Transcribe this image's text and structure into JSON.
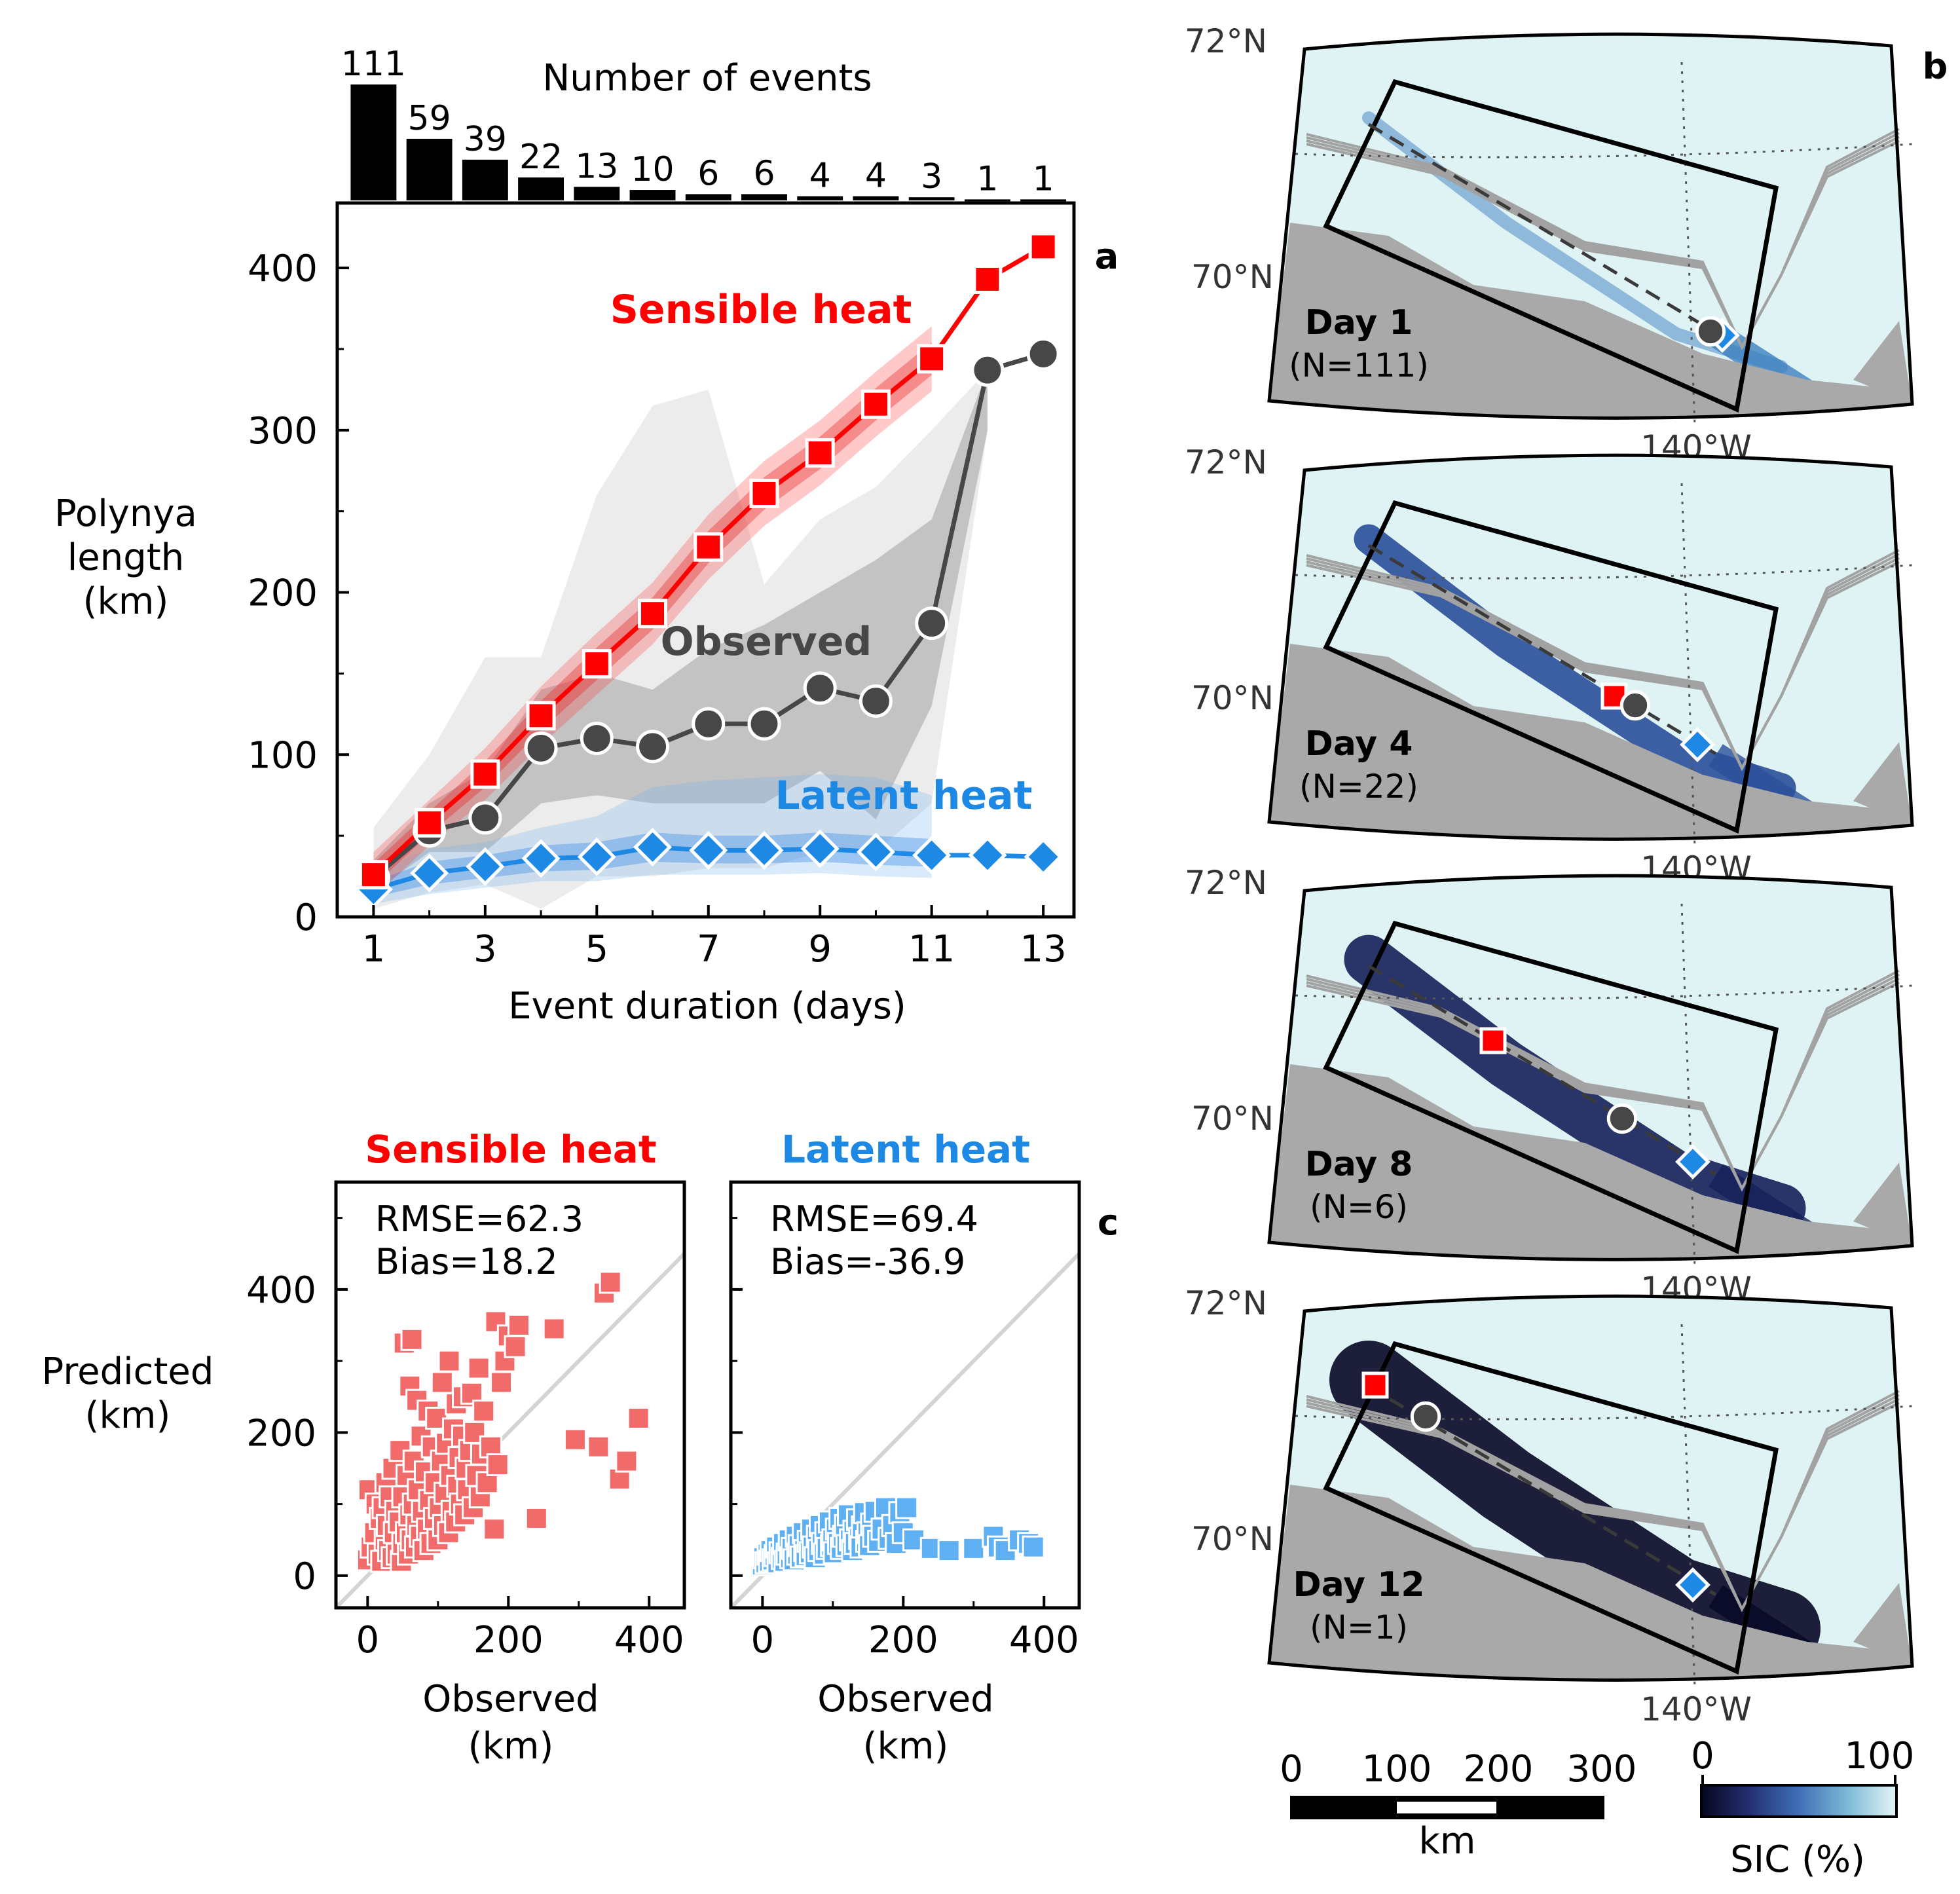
{
  "panel_labels": {
    "a": "a",
    "b": "b",
    "c": "c"
  },
  "colors": {
    "sensible": "#ff0000",
    "sensible_scatter": "#f26b6b",
    "latent": "#1e88e5",
    "latent_scatter": "#5eb0f2",
    "observed": "#474747",
    "land": "#a9a9a9",
    "ice_high": "#e0f4f5",
    "ice_low": "#0a0a2e"
  },
  "chart_data": [
    {
      "id": "histogram",
      "type": "bar",
      "title": "Number of events",
      "categories": [
        1,
        2,
        3,
        4,
        5,
        6,
        7,
        8,
        9,
        10,
        11,
        12,
        13
      ],
      "values": [
        111,
        59,
        39,
        22,
        13,
        10,
        6,
        6,
        4,
        4,
        3,
        1,
        1
      ],
      "value_labels": [
        "111",
        "59",
        "39",
        "22",
        "13",
        "10",
        "6",
        "6",
        "4",
        "4",
        "3",
        "1",
        "1"
      ]
    },
    {
      "id": "panel_a",
      "type": "line",
      "xlabel": "Event duration (days)",
      "ylabel": "Polynya length (km)",
      "ylabel_lines": [
        "Polynya",
        "length",
        "(km)"
      ],
      "xlim": [
        0.35,
        13.55
      ],
      "ylim": [
        0,
        440
      ],
      "xticks": [
        1,
        3,
        5,
        7,
        9,
        11,
        13
      ],
      "xtick_labels": [
        "1",
        "3",
        "5",
        "7",
        "9",
        "11",
        "13"
      ],
      "yticks": [
        0,
        100,
        200,
        300,
        400
      ],
      "ytick_labels": [
        "0",
        "100",
        "200",
        "300",
        "400"
      ],
      "x": [
        1,
        2,
        3,
        4,
        5,
        6,
        7,
        8,
        9,
        10,
        11,
        12,
        13
      ],
      "series": [
        {
          "name": "Sensible heat",
          "marker": "square",
          "values": [
            26,
            58,
            88,
            124,
            156,
            187,
            228,
            261,
            286,
            316,
            344,
            393,
            413
          ],
          "band_inner_low": [
            19,
            51,
            80,
            115,
            146,
            177,
            218,
            251,
            276,
            306,
            334
          ],
          "band_inner_high": [
            33,
            65,
            96,
            133,
            166,
            197,
            238,
            271,
            296,
            326,
            354
          ],
          "band_outer_low": [
            12,
            44,
            72,
            106,
            137,
            168,
            208,
            241,
            266,
            296,
            324
          ],
          "band_outer_high": [
            40,
            72,
            104,
            142,
            175,
            206,
            248,
            281,
            306,
            336,
            364
          ]
        },
        {
          "name": "Observed",
          "marker": "circle",
          "values": [
            24,
            53,
            61,
            104,
            110,
            105,
            119,
            119,
            141,
            133,
            181,
            337,
            347
          ],
          "band_inner_low": [
            15,
            40,
            40,
            70,
            75,
            70,
            70,
            70,
            90,
            60,
            130,
            300
          ],
          "band_inner_high": [
            35,
            70,
            90,
            140,
            150,
            140,
            165,
            180,
            200,
            220,
            245,
            337
          ],
          "band_outer_low": [
            5,
            15,
            20,
            5,
            25,
            25,
            30,
            30,
            40,
            40,
            70,
            300
          ],
          "band_outer_high": [
            55,
            100,
            160,
            160,
            260,
            315,
            325,
            205,
            245,
            265,
            300,
            337
          ]
        },
        {
          "name": "Latent heat",
          "marker": "diamond",
          "values": [
            17,
            27,
            31,
            36,
            37,
            43,
            41,
            41,
            42,
            40,
            38,
            38,
            37
          ],
          "band_inner_low": [
            12,
            20,
            24,
            28,
            29,
            34,
            33,
            33,
            34,
            32,
            31
          ],
          "band_inner_high": [
            22,
            34,
            38,
            44,
            46,
            52,
            50,
            50,
            52,
            50,
            48
          ],
          "band_outer_low": [
            8,
            14,
            18,
            22,
            22,
            26,
            26,
            26,
            27,
            25,
            24
          ],
          "band_outer_high": [
            28,
            42,
            46,
            55,
            62,
            80,
            84,
            86,
            88,
            86,
            75
          ]
        }
      ],
      "series_labels": [
        "Sensible heat",
        "Observed",
        "Latent heat"
      ]
    },
    {
      "id": "panel_c_sensible",
      "type": "scatter",
      "title": "Sensible heat",
      "xlabel": "Observed",
      "xlabel_unit": "(km)",
      "ylabel": "Predicted",
      "ylabel_unit": "(km)",
      "xlim": [
        -45,
        450
      ],
      "ylim": [
        -45,
        550
      ],
      "xticks": [
        0,
        200,
        400
      ],
      "xtick_labels": [
        "0",
        "200",
        "400"
      ],
      "yticks": [
        0,
        200,
        400
      ],
      "ytick_labels": [
        "0",
        "200",
        "400"
      ],
      "stats": [
        "RMSE=62.3",
        "Bias=18.2"
      ],
      "points": [
        [
          0,
          22
        ],
        [
          2,
          120
        ],
        [
          5,
          40
        ],
        [
          10,
          60
        ],
        [
          12,
          100
        ],
        [
          15,
          30
        ],
        [
          18,
          80
        ],
        [
          20,
          20
        ],
        [
          22,
          95
        ],
        [
          25,
          50
        ],
        [
          26,
          130
        ],
        [
          28,
          70
        ],
        [
          30,
          35
        ],
        [
          32,
          110
        ],
        [
          35,
          25
        ],
        [
          36,
          150
        ],
        [
          38,
          60
        ],
        [
          40,
          90
        ],
        [
          42,
          30
        ],
        [
          45,
          75
        ],
        [
          46,
          175
        ],
        [
          48,
          20
        ],
        [
          50,
          45
        ],
        [
          50,
          110
        ],
        [
          52,
          325
        ],
        [
          55,
          60
        ],
        [
          56,
          140
        ],
        [
          58,
          30
        ],
        [
          60,
          85
        ],
        [
          60,
          265
        ],
        [
          62,
          50
        ],
        [
          63,
          330
        ],
        [
          65,
          100
        ],
        [
          66,
          160
        ],
        [
          68,
          40
        ],
        [
          70,
          70
        ],
        [
          70,
          245
        ],
        [
          72,
          120
        ],
        [
          75,
          55
        ],
        [
          76,
          195
        ],
        [
          78,
          90
        ],
        [
          80,
          35
        ],
        [
          82,
          145
        ],
        [
          85,
          65
        ],
        [
          86,
          230
        ],
        [
          88,
          105
        ],
        [
          90,
          45
        ],
        [
          92,
          180
        ],
        [
          95,
          80
        ],
        [
          96,
          130
        ],
        [
          98,
          220
        ],
        [
          100,
          50
        ],
        [
          102,
          95
        ],
        [
          105,
          160
        ],
        [
          106,
          270
        ],
        [
          108,
          70
        ],
        [
          110,
          115
        ],
        [
          112,
          185
        ],
        [
          115,
          60
        ],
        [
          116,
          300
        ],
        [
          118,
          140
        ],
        [
          120,
          90
        ],
        [
          122,
          205
        ],
        [
          125,
          75
        ],
        [
          126,
          240
        ],
        [
          128,
          125
        ],
        [
          130,
          165
        ],
        [
          132,
          100
        ],
        [
          135,
          195
        ],
        [
          136,
          250
        ],
        [
          138,
          85
        ],
        [
          140,
          150
        ],
        [
          142,
          120
        ],
        [
          145,
          175
        ],
        [
          148,
          255
        ],
        [
          150,
          95
        ],
        [
          152,
          200
        ],
        [
          155,
          140
        ],
        [
          158,
          290
        ],
        [
          160,
          110
        ],
        [
          162,
          170
        ],
        [
          165,
          230
        ],
        [
          170,
          130
        ],
        [
          175,
          180
        ],
        [
          180,
          65
        ],
        [
          182,
          355
        ],
        [
          185,
          155
        ],
        [
          190,
          270
        ],
        [
          195,
          300
        ],
        [
          200,
          335
        ],
        [
          210,
          320
        ],
        [
          215,
          350
        ],
        [
          240,
          80
        ],
        [
          265,
          345
        ],
        [
          295,
          190
        ],
        [
          328,
          180
        ],
        [
          336,
          395
        ],
        [
          345,
          410
        ],
        [
          358,
          135
        ],
        [
          368,
          160
        ],
        [
          385,
          220
        ]
      ]
    },
    {
      "id": "panel_c_latent",
      "type": "scatter",
      "title": "Latent heat",
      "xlabel": "Observed",
      "xlabel_unit": "(km)",
      "ylabel": "",
      "xlim": [
        -45,
        450
      ],
      "ylim": [
        -45,
        550
      ],
      "xticks": [
        0,
        200,
        400
      ],
      "xtick_labels": [
        "0",
        "200",
        "400"
      ],
      "yticks": [
        0,
        200,
        400
      ],
      "stats": [
        "RMSE=69.4",
        "Bias=-36.9"
      ],
      "points": [
        [
          0,
          15
        ],
        [
          2,
          25
        ],
        [
          5,
          18
        ],
        [
          8,
          30
        ],
        [
          10,
          20
        ],
        [
          12,
          35
        ],
        [
          15,
          22
        ],
        [
          18,
          28
        ],
        [
          20,
          40
        ],
        [
          22,
          18
        ],
        [
          25,
          32
        ],
        [
          28,
          24
        ],
        [
          30,
          45
        ],
        [
          32,
          20
        ],
        [
          35,
          30
        ],
        [
          38,
          50
        ],
        [
          40,
          25
        ],
        [
          42,
          38
        ],
        [
          45,
          22
        ],
        [
          48,
          55
        ],
        [
          50,
          30
        ],
        [
          52,
          42
        ],
        [
          55,
          26
        ],
        [
          58,
          60
        ],
        [
          60,
          35
        ],
        [
          62,
          28
        ],
        [
          65,
          48
        ],
        [
          68,
          32
        ],
        [
          70,
          65
        ],
        [
          72,
          40
        ],
        [
          75,
          25
        ],
        [
          78,
          55
        ],
        [
          80,
          35
        ],
        [
          82,
          70
        ],
        [
          85,
          45
        ],
        [
          88,
          30
        ],
        [
          90,
          60
        ],
        [
          92,
          38
        ],
        [
          95,
          75
        ],
        [
          98,
          42
        ],
        [
          100,
          50
        ],
        [
          102,
          32
        ],
        [
          105,
          65
        ],
        [
          108,
          45
        ],
        [
          110,
          80
        ],
        [
          112,
          38
        ],
        [
          115,
          55
        ],
        [
          118,
          70
        ],
        [
          120,
          42
        ],
        [
          122,
          85
        ],
        [
          125,
          50
        ],
        [
          128,
          35
        ],
        [
          130,
          62
        ],
        [
          132,
          45
        ],
        [
          135,
          78
        ],
        [
          138,
          52
        ],
        [
          140,
          40
        ],
        [
          142,
          68
        ],
        [
          145,
          88
        ],
        [
          148,
          48
        ],
        [
          150,
          60
        ],
        [
          152,
          42
        ],
        [
          155,
          72
        ],
        [
          158,
          55
        ],
        [
          160,
          90
        ],
        [
          165,
          48
        ],
        [
          170,
          65
        ],
        [
          175,
          95
        ],
        [
          180,
          52
        ],
        [
          185,
          70
        ],
        [
          190,
          45
        ],
        [
          195,
          88
        ],
        [
          200,
          60
        ],
        [
          205,
          95
        ],
        [
          215,
          50
        ],
        [
          240,
          38
        ],
        [
          265,
          35
        ],
        [
          300,
          38
        ],
        [
          328,
          55
        ],
        [
          335,
          40
        ],
        [
          345,
          35
        ],
        [
          365,
          50
        ],
        [
          378,
          45
        ],
        [
          385,
          40
        ]
      ]
    }
  ],
  "maps": {
    "lat_labels": [
      "72°N",
      "70°N"
    ],
    "lon_label": "140°W",
    "panels": [
      {
        "day": "Day 1",
        "count": "(N=111)"
      },
      {
        "day": "Day 4",
        "count": "(N=22)"
      },
      {
        "day": "Day 8",
        "count": "(N=6)"
      },
      {
        "day": "Day 12",
        "count": "(N=1)"
      }
    ],
    "scalebar": {
      "ticks": [
        "0",
        "100",
        "200",
        "300"
      ],
      "unit": "km"
    },
    "colorbar": {
      "min_label": "0",
      "max_label": "100",
      "label": "SIC (%)"
    }
  }
}
